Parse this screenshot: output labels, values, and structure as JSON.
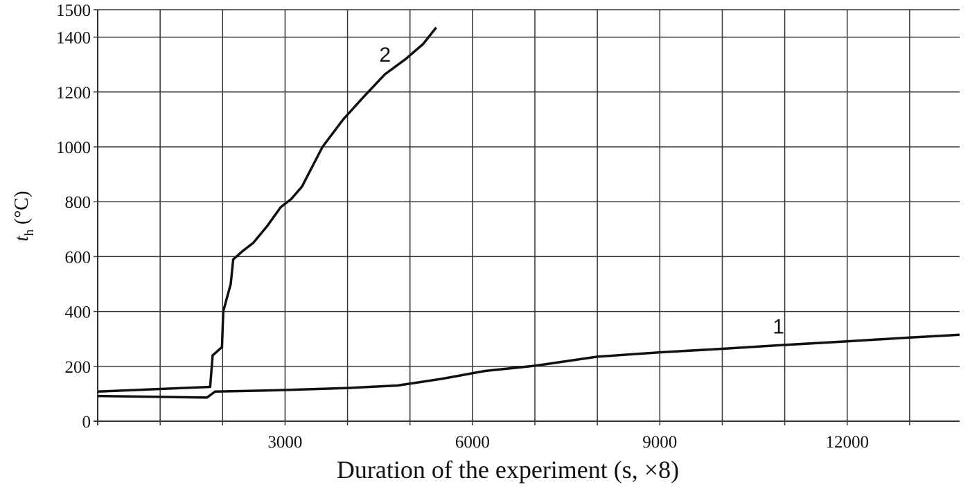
{
  "chart_data": {
    "type": "line",
    "title": "",
    "xlabel": "Duration of the experiment (s, ×8)",
    "ylabel_main": "t",
    "ylabel_sub": "h",
    "ylabel_unit": " (°C)",
    "xlim": [
      0,
      13800
    ],
    "ylim": [
      0,
      1500
    ],
    "x_ticks": [
      3000,
      6000,
      9000,
      12000
    ],
    "x_tick_labels": [
      "3000",
      "6000",
      "9000",
      "12000"
    ],
    "x_grid_step": 1000,
    "y_ticks": [
      0,
      200,
      400,
      600,
      800,
      1000,
      1200,
      1400,
      1500
    ],
    "y_tick_labels": [
      "0",
      "200",
      "400",
      "600",
      "800",
      "1000",
      "1200",
      "1400",
      "1500"
    ],
    "grid": true,
    "legend": "none (curves labeled inline '1' and '2')",
    "series": [
      {
        "name": "1",
        "label_pos": {
          "x": 10900,
          "y": 320
        },
        "x": [
          0,
          1750,
          1880,
          2900,
          4000,
          4800,
          5500,
          6200,
          7000,
          8000,
          9000,
          10000,
          11000,
          12000,
          13000,
          13800
        ],
        "y": [
          92,
          86,
          108,
          113,
          121,
          130,
          154,
          183,
          202,
          235,
          251,
          264,
          278,
          291,
          305,
          315
        ]
      },
      {
        "name": "2",
        "label_pos": {
          "x": 4600,
          "y": 1310
        },
        "x": [
          0,
          1800,
          1840,
          1990,
          2010,
          2130,
          2170,
          2320,
          2490,
          2710,
          2930,
          3100,
          3270,
          3600,
          3930,
          4270,
          4600,
          4930,
          5210,
          5420
        ],
        "y": [
          108,
          125,
          240,
          270,
          400,
          500,
          590,
          620,
          650,
          710,
          780,
          810,
          855,
          1000,
          1100,
          1185,
          1265,
          1320,
          1375,
          1435
        ]
      }
    ]
  }
}
